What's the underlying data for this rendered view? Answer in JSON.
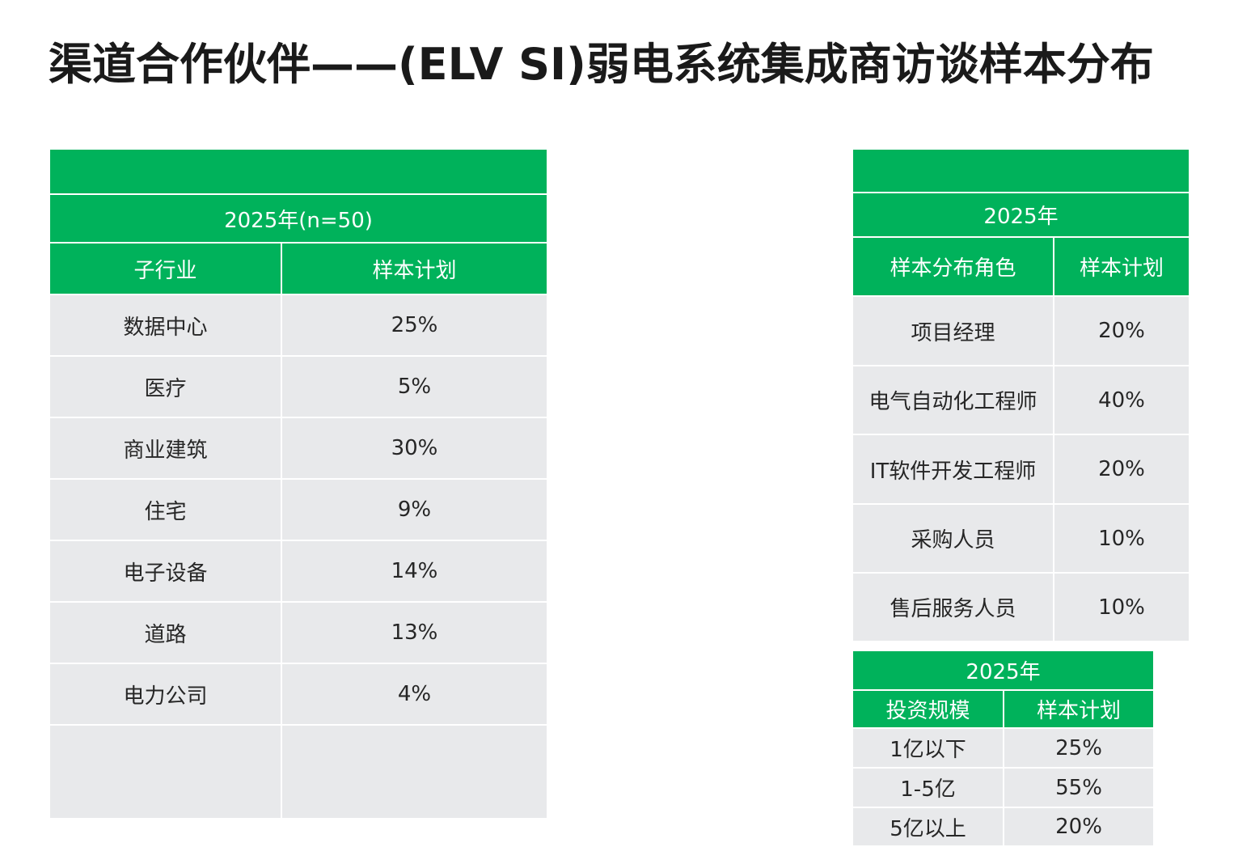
{
  "title": "渠道合作伙伴——(ELV SI)弱电系统集成商访谈样本分布",
  "colors": {
    "header_green": "#00b25b",
    "cell_gray": "#e8e9eb"
  },
  "table_industry": {
    "year_header": "2025年(n=50)",
    "col_headers": [
      "子行业",
      "样本计划"
    ],
    "rows": [
      {
        "label": "数据中心",
        "value": "25%"
      },
      {
        "label": "医疗",
        "value": "5%"
      },
      {
        "label": "商业建筑",
        "value": "30%"
      },
      {
        "label": "住宅",
        "value": "9%"
      },
      {
        "label": "电子设备",
        "value": "14%"
      },
      {
        "label": "道路",
        "value": "13%"
      },
      {
        "label": "电力公司",
        "value": "4%"
      }
    ]
  },
  "table_role": {
    "year_header": "2025年",
    "col_headers": [
      "样本分布角色",
      "样本计划"
    ],
    "rows": [
      {
        "label": "项目经理",
        "value": "20%"
      },
      {
        "label": "电气自动化工程师",
        "value": "40%"
      },
      {
        "label": "IT软件开发工程师",
        "value": "20%"
      },
      {
        "label": "采购人员",
        "value": "10%"
      },
      {
        "label": "售后服务人员",
        "value": "10%"
      }
    ]
  },
  "table_investment": {
    "year_header": "2025年",
    "col_headers": [
      "投资规模",
      "样本计划"
    ],
    "rows": [
      {
        "label": "1亿以下",
        "value": "25%"
      },
      {
        "label": "1-5亿",
        "value": "55%"
      },
      {
        "label": "5亿以上",
        "value": "20%"
      }
    ]
  }
}
